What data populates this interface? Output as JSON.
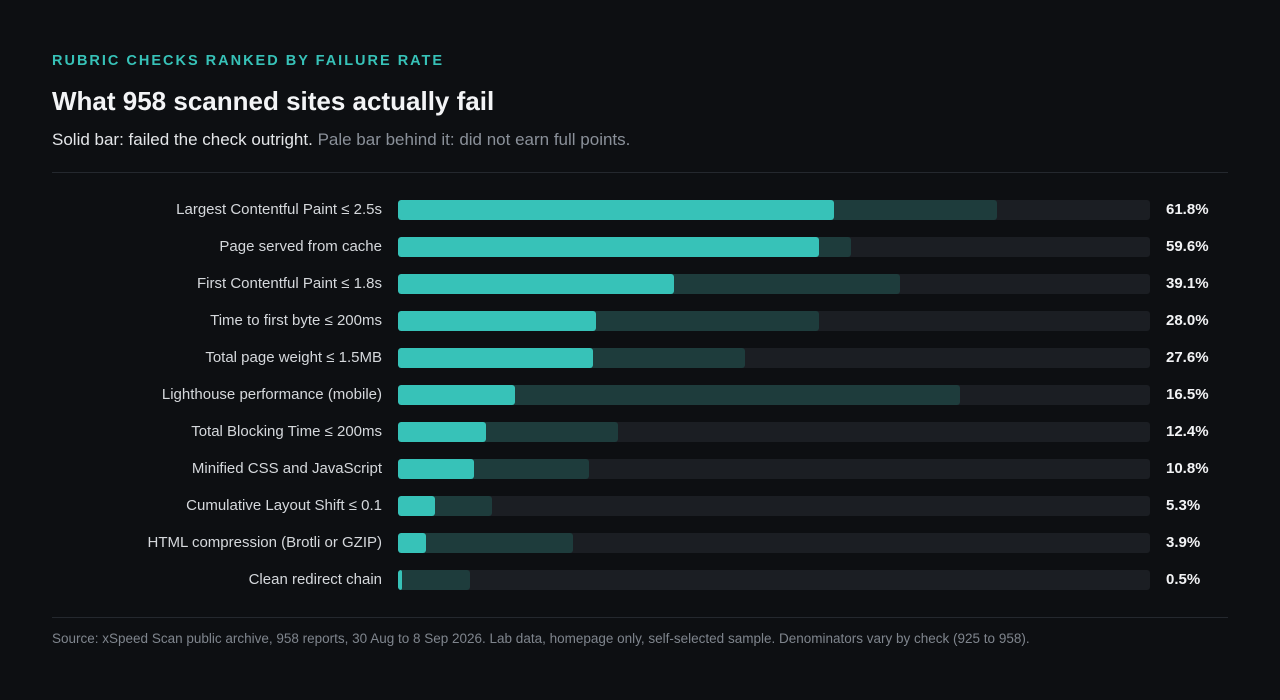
{
  "header": {
    "eyebrow": "RUBRIC CHECKS RANKED BY FAILURE RATE",
    "title": "What 958 scanned sites actually fail",
    "subtitle_solid": "Solid bar: failed the check outright.",
    "subtitle_pale": "Pale bar behind it: did not earn full points."
  },
  "colors": {
    "accent": "#37c2b8",
    "pale_bar": "#1e3c3c",
    "track": "#1b1e23",
    "background": "#0d0f12"
  },
  "chart_data": {
    "type": "bar",
    "orientation": "horizontal",
    "categories": [
      "Largest Contentful Paint ≤ 2.5s",
      "Page served from cache",
      "First Contentful Paint ≤ 1.8s",
      "Time to first byte ≤ 200ms",
      "Total page weight ≤ 1.5MB",
      "Lighthouse performance (mobile)",
      "Total Blocking Time ≤ 200ms",
      "Minified CSS and JavaScript",
      "Cumulative Layout Shift ≤ 0.1",
      "HTML compression (Brotli or GZIP)",
      "Clean redirect chain"
    ],
    "series": [
      {
        "name": "failed the check outright",
        "values": [
          61.8,
          59.6,
          39.1,
          28.0,
          27.6,
          16.5,
          12.4,
          10.8,
          5.3,
          3.9,
          0.5
        ]
      },
      {
        "name": "did not earn full points",
        "values": [
          84.8,
          64.1,
          71.1,
          59.6,
          49.2,
          79.6,
          31.1,
          27.1,
          13.3,
          24.8,
          10.2
        ]
      }
    ],
    "value_labels": [
      "61.8%",
      "59.6%",
      "39.1%",
      "28.0%",
      "27.6%",
      "16.5%",
      "12.4%",
      "10.8%",
      "5.3%",
      "3.9%",
      "0.5%"
    ],
    "xlim": [
      0,
      106.5
    ],
    "unit": "%"
  },
  "footer": {
    "source": "Source: xSpeed Scan public archive, 958 reports, 30 Aug to 8 Sep 2026. Lab data, homepage only, self-selected sample. Denominators vary by check (925 to 958)."
  }
}
